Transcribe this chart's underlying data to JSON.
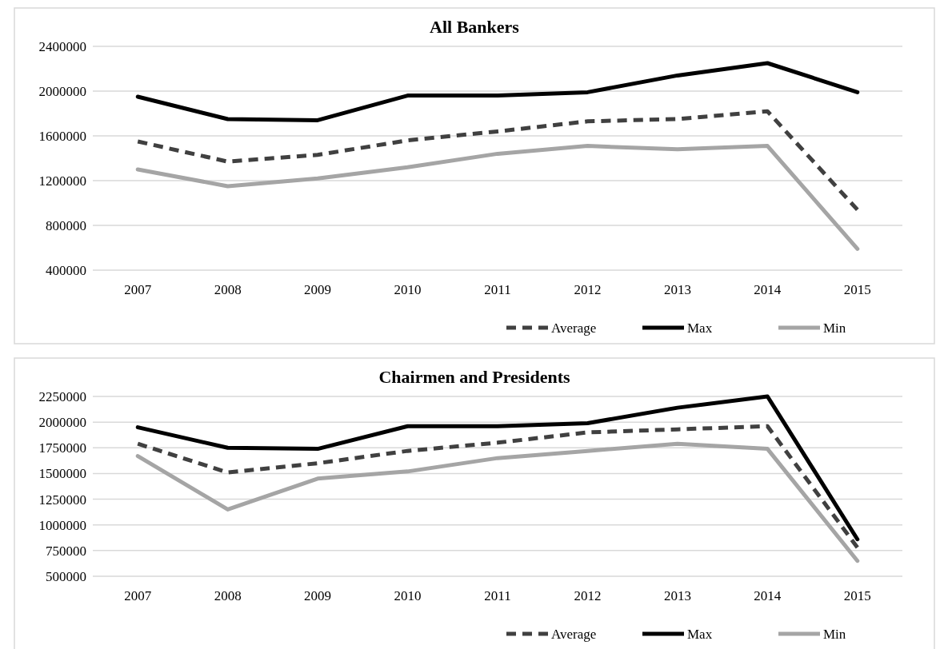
{
  "chart_data": [
    {
      "type": "line",
      "title": "All Bankers",
      "categories": [
        "2007",
        "2008",
        "2009",
        "2010",
        "2011",
        "2012",
        "2013",
        "2014",
        "2015"
      ],
      "ylim": [
        400000,
        2400000
      ],
      "yticks": [
        400000,
        800000,
        1200000,
        1600000,
        2000000,
        2400000
      ],
      "grid": "y",
      "legend": "bottom right",
      "series": [
        {
          "name": "Average",
          "color": "#404040",
          "line_style": "dashed",
          "values": [
            1550000,
            1370000,
            1430000,
            1560000,
            1640000,
            1730000,
            1750000,
            1820000,
            940000
          ]
        },
        {
          "name": "Max",
          "color": "#000000",
          "line_style": "solid",
          "values": [
            1950000,
            1750000,
            1740000,
            1960000,
            1960000,
            1990000,
            2140000,
            2250000,
            1990000
          ]
        },
        {
          "name": "Min",
          "color": "#a5a5a5",
          "line_style": "solid",
          "values": [
            1300000,
            1150000,
            1220000,
            1320000,
            1440000,
            1510000,
            1480000,
            1510000,
            590000
          ]
        }
      ]
    },
    {
      "type": "line",
      "title": "Chairmen and Presidents",
      "categories": [
        "2007",
        "2008",
        "2009",
        "2010",
        "2011",
        "2012",
        "2013",
        "2014",
        "2015"
      ],
      "ylim": [
        500000,
        2250000
      ],
      "yticks": [
        500000,
        750000,
        1000000,
        1250000,
        1500000,
        1750000,
        2000000,
        2250000
      ],
      "grid": "y",
      "legend": "bottom right",
      "series": [
        {
          "name": "Average",
          "color": "#404040",
          "line_style": "dashed",
          "values": [
            1790000,
            1510000,
            1600000,
            1720000,
            1800000,
            1900000,
            1930000,
            1960000,
            780000
          ]
        },
        {
          "name": "Max",
          "color": "#000000",
          "line_style": "solid",
          "values": [
            1950000,
            1750000,
            1740000,
            1960000,
            1960000,
            1990000,
            2140000,
            2250000,
            860000
          ]
        },
        {
          "name": "Min",
          "color": "#a5a5a5",
          "line_style": "solid",
          "values": [
            1670000,
            1150000,
            1450000,
            1520000,
            1650000,
            1720000,
            1790000,
            1740000,
            650000
          ]
        }
      ]
    }
  ]
}
